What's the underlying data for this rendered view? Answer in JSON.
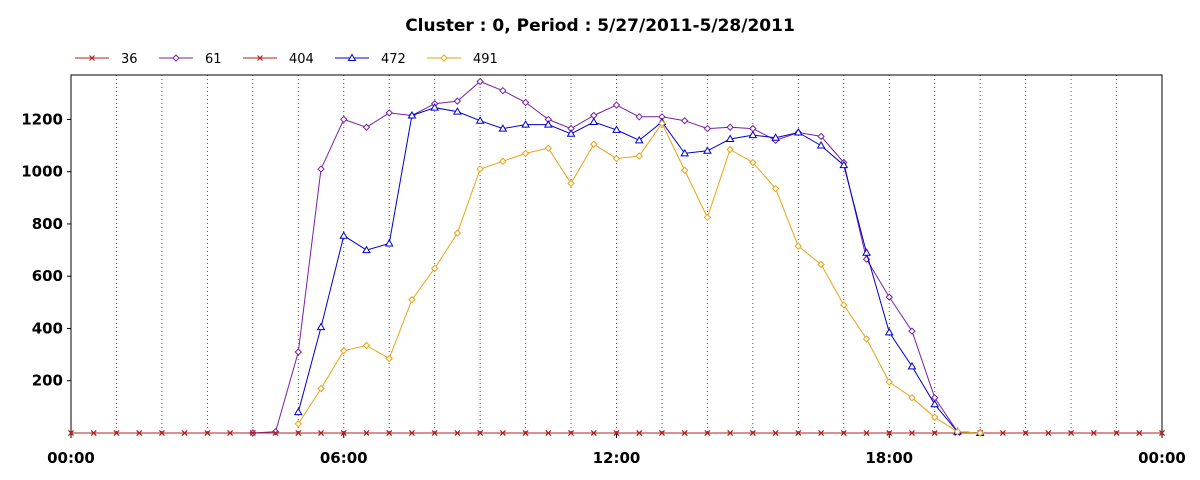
{
  "chart_data": {
    "type": "line",
    "title": "Cluster : 0, Period : 5/27/2011-5/28/2011",
    "xlabel": "",
    "ylabel": "",
    "x_ticks": [
      "00:00",
      "06:00",
      "12:00",
      "18:00",
      "00:00"
    ],
    "y_ticks": [
      200,
      400,
      600,
      800,
      1000,
      1200
    ],
    "xlim_hours": [
      0,
      24
    ],
    "ylim": [
      0,
      1370
    ],
    "grid": "vertical dotted",
    "legend_position": "top-left",
    "x_hours": [
      0,
      0.5,
      1,
      1.5,
      2,
      2.5,
      3,
      3.5,
      4,
      4.5,
      5,
      5.5,
      6,
      6.5,
      7,
      7.5,
      8,
      8.5,
      9,
      9.5,
      10,
      10.5,
      11,
      11.5,
      12,
      12.5,
      13,
      13.5,
      14,
      14.5,
      15,
      15.5,
      16,
      16.5,
      17,
      17.5,
      18,
      18.5,
      19,
      19.5,
      20,
      20.5,
      21,
      21.5,
      22,
      22.5,
      23,
      23.5,
      24
    ],
    "series": [
      {
        "name": "36",
        "color": "#b22222",
        "marker": "x",
        "values": [
          0,
          0,
          0,
          0,
          0,
          0,
          0,
          0,
          0,
          0,
          0,
          0,
          0,
          0,
          0,
          0,
          0,
          0,
          0,
          0,
          0,
          0,
          0,
          0,
          0,
          0,
          0,
          0,
          0,
          0,
          0,
          0,
          0,
          0,
          0,
          0,
          0,
          0,
          0,
          0,
          0,
          0,
          0,
          0,
          0,
          0,
          0,
          0,
          0
        ]
      },
      {
        "name": "61",
        "color": "#7b1fa2",
        "marker": "diamond",
        "values": [
          null,
          null,
          null,
          null,
          null,
          null,
          null,
          null,
          0,
          5,
          310,
          1010,
          1200,
          1170,
          1225,
          1215,
          1260,
          1270,
          1345,
          1310,
          1265,
          1200,
          1165,
          1215,
          1255,
          1210,
          1210,
          1195,
          1165,
          1170,
          1165,
          1120,
          1150,
          1135,
          1035,
          665,
          520,
          390,
          135,
          5,
          0,
          null,
          null,
          null,
          null,
          null,
          null,
          null,
          null
        ]
      },
      {
        "name": "404",
        "color": "#b22222",
        "marker": "x",
        "values": [
          0,
          0,
          0,
          0,
          0,
          0,
          0,
          0,
          0,
          0,
          0,
          0,
          0,
          0,
          0,
          0,
          0,
          0,
          0,
          0,
          0,
          0,
          0,
          0,
          0,
          0,
          0,
          0,
          0,
          0,
          0,
          0,
          0,
          0,
          0,
          0,
          0,
          0,
          0,
          0,
          0,
          0,
          0,
          0,
          0,
          0,
          0,
          0,
          0
        ]
      },
      {
        "name": "472",
        "color": "#0000cc",
        "marker": "triangle",
        "values": [
          null,
          null,
          null,
          null,
          null,
          null,
          null,
          null,
          null,
          null,
          80,
          405,
          755,
          700,
          725,
          1215,
          1245,
          1230,
          1195,
          1165,
          1180,
          1180,
          1145,
          1190,
          1160,
          1120,
          1190,
          1070,
          1080,
          1125,
          1140,
          1130,
          1150,
          1100,
          1025,
          690,
          385,
          255,
          110,
          5,
          0,
          null,
          null,
          null,
          null,
          null,
          null,
          null,
          null
        ]
      },
      {
        "name": "491",
        "color": "#e8a317",
        "marker": "diamond",
        "values": [
          null,
          null,
          null,
          null,
          null,
          null,
          null,
          null,
          null,
          null,
          35,
          170,
          315,
          335,
          285,
          510,
          630,
          765,
          1010,
          1040,
          1070,
          1090,
          955,
          1105,
          1050,
          1060,
          1185,
          1005,
          825,
          1085,
          1035,
          935,
          715,
          645,
          490,
          360,
          195,
          135,
          60,
          5,
          0,
          null,
          null,
          null,
          null,
          null,
          null,
          null,
          null
        ]
      }
    ]
  }
}
